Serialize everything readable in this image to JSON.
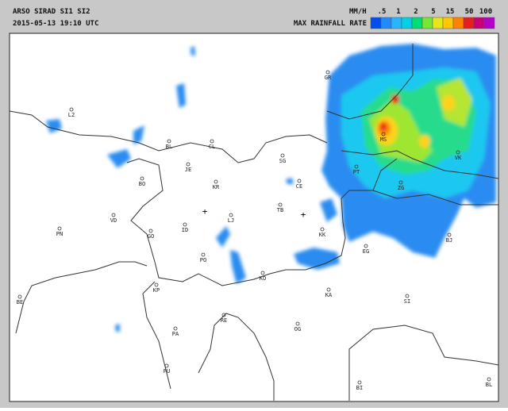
{
  "header": {
    "title": "ARSO SIRAD SI1 SI2",
    "timestamp": "2015-05-13 19:10 UTC",
    "unit": "MM/H",
    "legend_title": "MAX RAINFALL RATE",
    "legend_labels": [
      ".5",
      "1",
      "2",
      "5",
      "15",
      "50",
      "100"
    ]
  },
  "map": {
    "places": [
      "L2",
      "BL",
      "CL",
      "JE",
      "SG",
      "BO",
      "KR",
      "CE",
      "VD",
      "LJ",
      "TB",
      "PN",
      "GO",
      "ID",
      "KK",
      "PO",
      "EG",
      "KO",
      "KP",
      "KA",
      "SI",
      "RE",
      "OG",
      "PA",
      "PU",
      "BI",
      "BL",
      "GR",
      "MS",
      "PT",
      "VK",
      "ZG",
      "BJ",
      "BE"
    ]
  }
}
